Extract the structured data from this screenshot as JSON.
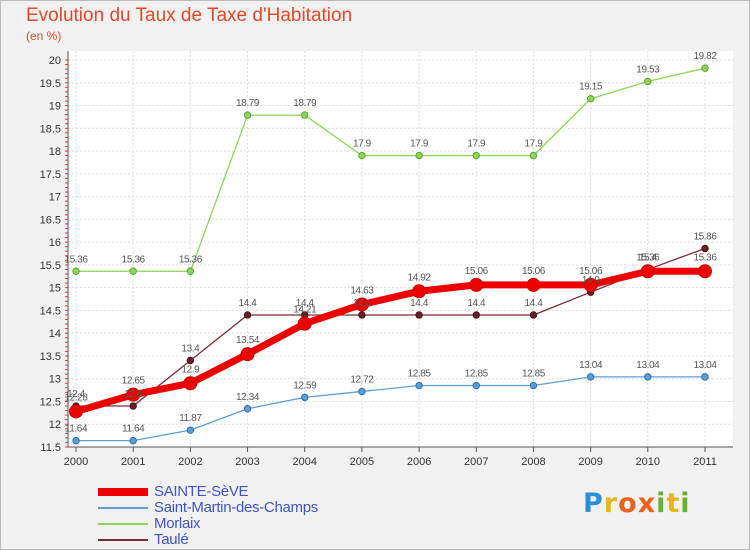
{
  "title": "Evolution du Taux de Taxe d'Habitation",
  "subtitle": "(en %)",
  "brand": {
    "letters": [
      {
        "ch": "P",
        "color": "#2a8fd6"
      },
      {
        "ch": "r",
        "color": "#e8b520"
      },
      {
        "ch": "o",
        "color": "#e8641c"
      },
      {
        "ch": "x",
        "color": "#e8641c"
      },
      {
        "ch": "i",
        "color": "#66b12e"
      },
      {
        "ch": "t",
        "color": "#e8b520"
      },
      {
        "ch": "i",
        "color": "#66b12e"
      }
    ]
  },
  "chart_data": {
    "type": "line",
    "title": "Evolution du Taux de Taxe d'Habitation",
    "ylabel": "(en %)",
    "x": [
      "2000",
      "2001",
      "2002",
      "2003",
      "2004",
      "2005",
      "2006",
      "2007",
      "2008",
      "2009",
      "2010",
      "2011"
    ],
    "ylim": [
      11.5,
      20
    ],
    "yticks": [
      11.5,
      12,
      12.5,
      13,
      13.5,
      14,
      14.5,
      15,
      15.5,
      16,
      16.5,
      17,
      17.5,
      18,
      18.5,
      19,
      19.5,
      20
    ],
    "ytick_labels": [
      "11.5",
      "12",
      "12.5",
      "13",
      "13.5",
      "14",
      "14.5",
      "15",
      "15.5",
      "16",
      "16.5",
      "17",
      "17.5",
      "18",
      "18.5",
      "19",
      "19.5",
      "20"
    ],
    "grid": true,
    "legend_position": "bottom-left",
    "series": [
      {
        "name": "Saint-Martin-des-Champs",
        "color": "#5b9fd6",
        "values": [
          11.64,
          11.64,
          11.87,
          12.34,
          12.59,
          12.72,
          12.85,
          12.85,
          12.85,
          13.04,
          13.04,
          13.04
        ],
        "labels": [
          "11.64",
          "11.64",
          "11.87",
          "12.34",
          "12.59",
          "12.72",
          "12.85",
          "12.85",
          "12.85",
          "13.04",
          "13.04",
          "13.04"
        ]
      },
      {
        "name": "Morlaix",
        "color": "#8ed35a",
        "values": [
          15.36,
          15.36,
          15.36,
          18.79,
          18.79,
          17.9,
          17.9,
          17.9,
          17.9,
          19.15,
          19.53,
          19.82
        ],
        "labels": [
          "15.36",
          "15.36",
          "15.36",
          "18.79",
          "18.79",
          "17.9",
          "17.9",
          "17.9",
          "17.9",
          "19.15",
          "19.53",
          "19.82"
        ]
      },
      {
        "name": "Taulé",
        "color": "#7a2a35",
        "values": [
          12.4,
          12.4,
          13.4,
          14.4,
          14.4,
          14.4,
          14.4,
          14.4,
          14.4,
          14.9,
          15.4,
          15.86
        ],
        "labels": [
          "12.4",
          "12.4",
          "13.4",
          "14.4",
          "14.4",
          "14.4",
          "14.4",
          "14.4",
          "14.4",
          "14.9",
          "15.4",
          "15.86"
        ]
      },
      {
        "name": "SAINTE-SèVE",
        "color": "#ee0000",
        "values": [
          12.28,
          12.65,
          12.9,
          13.54,
          14.21,
          14.63,
          14.92,
          15.06,
          15.06,
          15.06,
          15.36,
          15.36
        ],
        "labels": [
          "12.28",
          "12.65",
          "12.9",
          "13.54",
          "14.21",
          "14.63",
          "14.92",
          "15.06",
          "15.06",
          "15.06",
          "15.36",
          "15.36"
        ]
      }
    ],
    "legend": [
      "SAINTE-SèVE",
      "Saint-Martin-des-Champs",
      "Morlaix",
      "Taulé"
    ]
  }
}
